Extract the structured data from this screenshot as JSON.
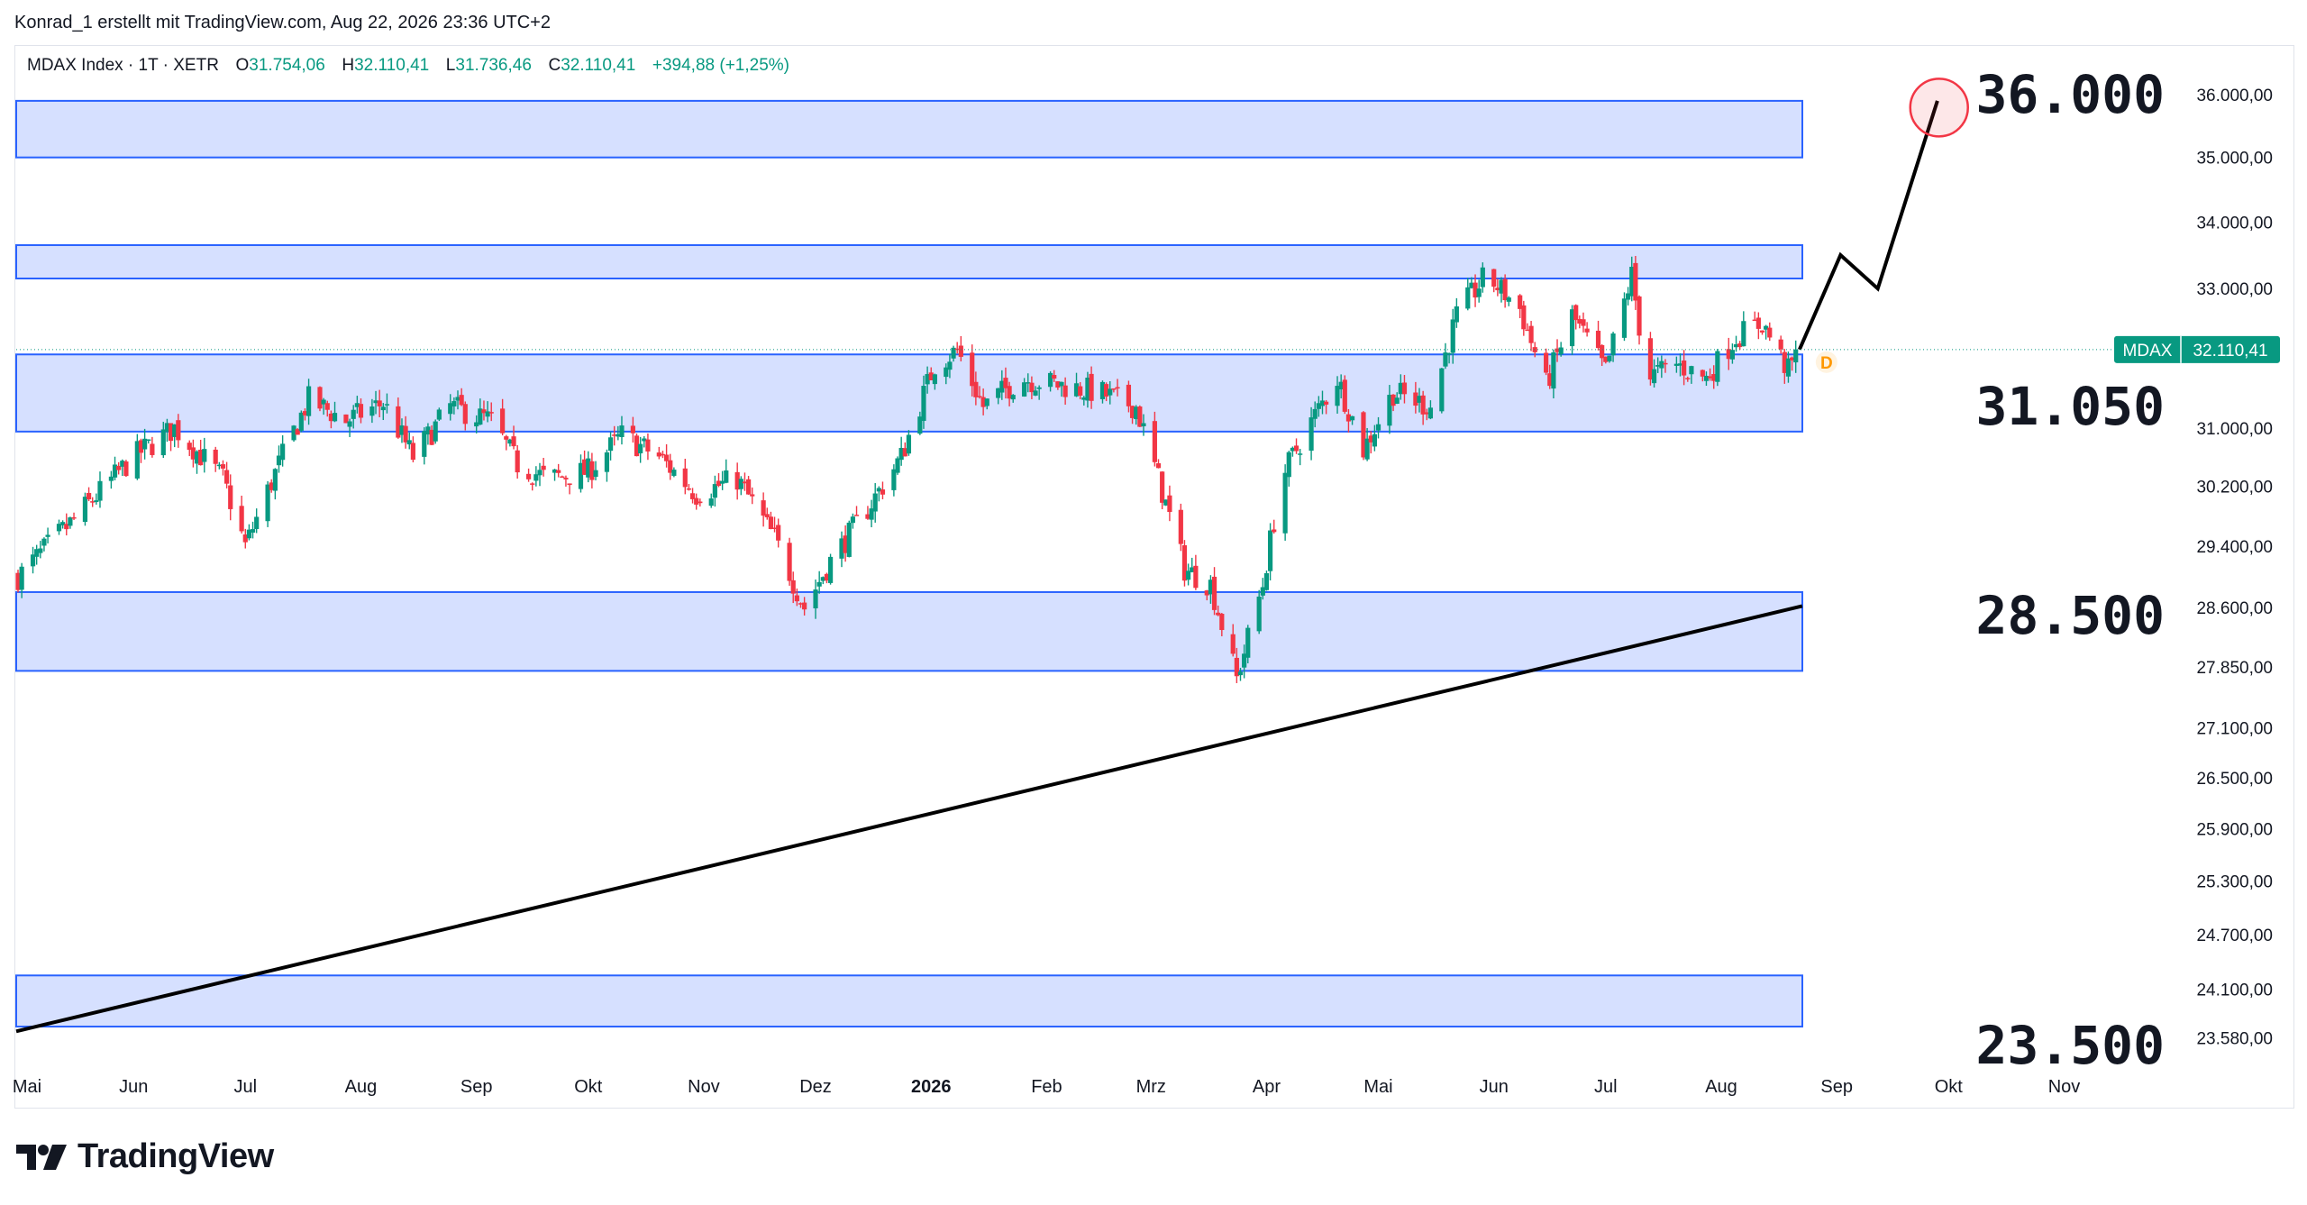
{
  "header": {
    "credit": "Konrad_1 erstellt mit TradingView.com, Aug 22, 2026 23:36 UTC+2"
  },
  "legend": {
    "symbol": "MDAX Index · 1T · XETR",
    "o_label": "O",
    "o_value": "31.754,06",
    "h_label": "H",
    "h_value": "32.110,41",
    "l_label": "L",
    "l_value": "31.736,46",
    "c_label": "C",
    "c_value": "32.110,41",
    "change": "+394,88 (+1,25%)"
  },
  "price_tag": {
    "symbol": "MDAX",
    "value": "32.110,41"
  },
  "dividend_marker": "D",
  "footer": {
    "brand": "TradingView"
  },
  "colors": {
    "up": "#089981",
    "down": "#f23645",
    "zone_fill": "#d6e0ff",
    "zone_border": "#2962ff",
    "trendline": "#000000",
    "target_circle": "#f23645",
    "tag_bg": "#089981",
    "marker": "#ff9800"
  },
  "chart_data": {
    "type": "candlestick",
    "y_axis_ticks": [
      "36.000,00",
      "35.000,00",
      "34.000,00",
      "33.000,00",
      "32.110,41",
      "31.000,00",
      "30.200,00",
      "29.400,00",
      "28.600,00",
      "27.850,00",
      "27.100,00",
      "26.500,00",
      "25.900,00",
      "25.300,00",
      "24.700,00",
      "24.100,00",
      "23.580,00"
    ],
    "x_axis_ticks": [
      "Mai",
      "Jun",
      "Jul",
      "Aug",
      "Sep",
      "Okt",
      "Nov",
      "Dez",
      "2026",
      "Feb",
      "Mrz",
      "Apr",
      "Mai",
      "Jun",
      "Jul",
      "Aug",
      "Sep",
      "Okt",
      "Nov"
    ],
    "level_labels": [
      "36.000",
      "31.050",
      "28.500",
      "23.500"
    ],
    "zones": [
      {
        "low": 35000,
        "high": 35900
      },
      {
        "low": 33150,
        "high": 33650
      },
      {
        "low": 30950,
        "high": 32040
      },
      {
        "low": 27800,
        "high": 28800
      },
      {
        "low": 23700,
        "high": 24250
      }
    ],
    "trendline": {
      "start": [
        "2025-05-01",
        23650
      ],
      "end": [
        "2026-08-22",
        28620
      ]
    },
    "projection_path": [
      [
        "2026-08-22",
        32110
      ],
      [
        "2026-09-02",
        33500
      ],
      [
        "2026-09-12",
        33000
      ],
      [
        "2026-09-28",
        35900
      ]
    ],
    "target": {
      "date": "2026-09-27",
      "value": 35850
    },
    "last_close": 32110.41,
    "price_series": [
      [
        "2025-05-01",
        29000
      ],
      [
        "2025-05-15",
        29700
      ],
      [
        "2025-06-01",
        30600
      ],
      [
        "2025-06-12",
        31000
      ],
      [
        "2025-06-25",
        30300
      ],
      [
        "2025-07-01",
        29400
      ],
      [
        "2025-07-10",
        30500
      ],
      [
        "2025-07-18",
        31400
      ],
      [
        "2025-07-28",
        31100
      ],
      [
        "2025-08-07",
        31350
      ],
      [
        "2025-08-15",
        30600
      ],
      [
        "2025-08-25",
        31300
      ],
      [
        "2025-09-05",
        31100
      ],
      [
        "2025-09-12",
        30500
      ],
      [
        "2025-09-20",
        30300
      ],
      [
        "2025-10-01",
        30400
      ],
      [
        "2025-10-10",
        30900
      ],
      [
        "2025-10-20",
        30600
      ],
      [
        "2025-10-30",
        30100
      ],
      [
        "2025-11-10",
        30300
      ],
      [
        "2025-11-20",
        29500
      ],
      [
        "2025-11-28",
        28600
      ],
      [
        "2025-12-05",
        29200
      ],
      [
        "2025-12-15",
        29900
      ],
      [
        "2025-12-24",
        30600
      ],
      [
        "2026-01-02",
        31900
      ],
      [
        "2026-01-08",
        32100
      ],
      [
        "2026-01-15",
        31300
      ],
      [
        "2026-01-25",
        31700
      ],
      [
        "2026-02-05",
        31600
      ],
      [
        "2026-02-15",
        31500
      ],
      [
        "2026-02-25",
        31300
      ],
      [
        "2026-03-03",
        30300
      ],
      [
        "2026-03-10",
        29100
      ],
      [
        "2026-03-17",
        28900
      ],
      [
        "2026-03-24",
        27700
      ],
      [
        "2026-03-31",
        28900
      ],
      [
        "2026-04-05",
        30300
      ],
      [
        "2026-04-12",
        31000
      ],
      [
        "2026-04-20",
        31700
      ],
      [
        "2026-04-27",
        30700
      ],
      [
        "2026-05-05",
        31500
      ],
      [
        "2026-05-15",
        31300
      ],
      [
        "2026-05-22",
        32600
      ],
      [
        "2026-05-30",
        33200
      ],
      [
        "2026-06-08",
        32700
      ],
      [
        "2026-06-15",
        31600
      ],
      [
        "2026-06-22",
        32600
      ],
      [
        "2026-07-01",
        31800
      ],
      [
        "2026-07-08",
        33200
      ],
      [
        "2026-07-12",
        31700
      ],
      [
        "2026-07-20",
        31900
      ],
      [
        "2026-07-28",
        31700
      ],
      [
        "2026-08-05",
        32300
      ],
      [
        "2026-08-12",
        32500
      ],
      [
        "2026-08-19",
        31800
      ],
      [
        "2026-08-22",
        32110
      ]
    ]
  }
}
